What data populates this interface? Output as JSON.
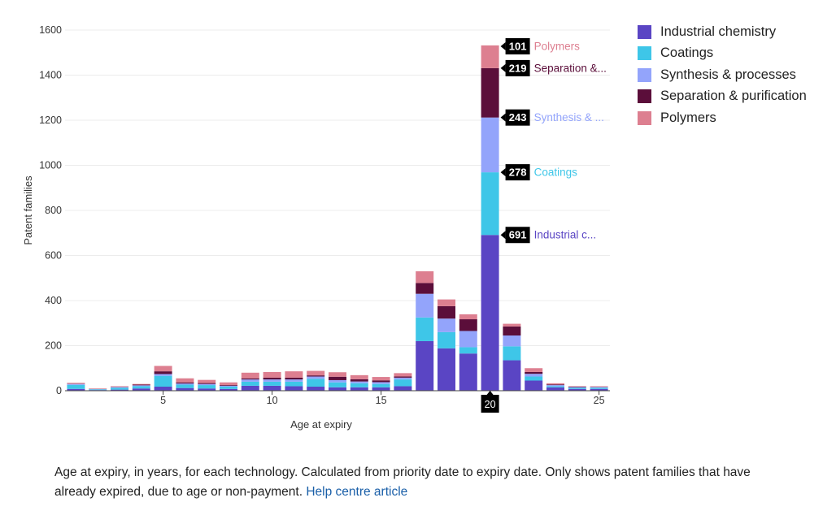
{
  "chart_data": {
    "type": "bar",
    "stacked": true,
    "ylabel": "Patent families",
    "xlabel": "Age at expiry",
    "ylim": [
      0,
      1600
    ],
    "yticks": [
      0,
      200,
      400,
      600,
      800,
      1000,
      1200,
      1400,
      1600
    ],
    "xticks": [
      5,
      10,
      15,
      20,
      25
    ],
    "x": [
      1,
      2,
      3,
      4,
      5,
      6,
      7,
      8,
      9,
      10,
      11,
      12,
      13,
      14,
      15,
      16,
      17,
      18,
      19,
      20,
      21,
      22,
      23,
      24,
      25
    ],
    "series": [
      {
        "name": "Industrial chemistry",
        "color": "#5a45c4",
        "values": [
          8,
          3,
          5,
          10,
          18,
          12,
          10,
          8,
          22,
          22,
          20,
          18,
          15,
          15,
          15,
          20,
          220,
          188,
          165,
          691,
          135,
          45,
          15,
          8,
          8
        ]
      },
      {
        "name": "Coatings",
        "color": "#3ec6e8",
        "values": [
          18,
          3,
          8,
          10,
          48,
          15,
          15,
          10,
          18,
          18,
          20,
          35,
          22,
          18,
          15,
          30,
          105,
          72,
          28,
          278,
          62,
          18,
          5,
          5,
          5
        ]
      },
      {
        "name": "Synthesis & processes",
        "color": "#93a4fb",
        "values": [
          4,
          1,
          3,
          4,
          8,
          5,
          5,
          4,
          10,
          10,
          10,
          10,
          10,
          8,
          8,
          8,
          105,
          60,
          72,
          243,
          48,
          12,
          5,
          3,
          3
        ]
      },
      {
        "name": "Separation & purification",
        "color": "#5b0e3a",
        "values": [
          1,
          1,
          1,
          3,
          12,
          5,
          4,
          3,
          5,
          8,
          8,
          5,
          15,
          10,
          8,
          5,
          48,
          55,
          52,
          219,
          40,
          8,
          3,
          2,
          1
        ]
      },
      {
        "name": "Polymers",
        "color": "#dd7f90",
        "values": [
          4,
          2,
          3,
          3,
          24,
          18,
          14,
          12,
          25,
          25,
          28,
          20,
          20,
          18,
          15,
          15,
          52,
          30,
          22,
          101,
          12,
          17,
          5,
          2,
          3
        ]
      }
    ],
    "hover": {
      "x": 20,
      "labels": [
        {
          "value": "691",
          "text": "Industrial c...",
          "color": "#5a45c4"
        },
        {
          "value": "278",
          "text": "Coatings",
          "color": "#3ec6e8"
        },
        {
          "value": "243",
          "text": "Synthesis & ...",
          "color": "#93a4fb"
        },
        {
          "value": "219",
          "text": "Separation &...",
          "color": "#5b0e3a"
        },
        {
          "value": "101",
          "text": "Polymers",
          "color": "#dd7f90"
        }
      ]
    }
  },
  "caption": {
    "text": "Age at expiry, in years, for each technology. Calculated from priority date to expiry date. Only shows patent families that have already expired, due to age or non-payment.",
    "link": "Help centre article"
  }
}
